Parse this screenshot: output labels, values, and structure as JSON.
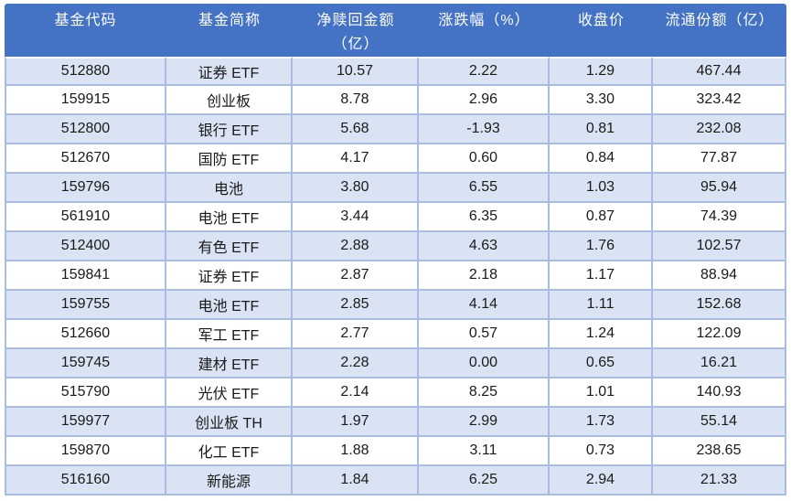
{
  "chart_data": {
    "type": "table",
    "columns": [
      "基金代码",
      "基金简称",
      "净赎回金额\n（亿）",
      "涨跌幅（%）",
      "收盘价",
      "流通份额（亿）"
    ],
    "rows": [
      [
        "512880",
        "证券 ETF",
        "10.57",
        "2.22",
        "1.29",
        "467.44"
      ],
      [
        "159915",
        "创业板",
        "8.78",
        "2.96",
        "3.30",
        "323.42"
      ],
      [
        "512800",
        "银行 ETF",
        "5.68",
        "-1.93",
        "0.81",
        "232.08"
      ],
      [
        "512670",
        "国防 ETF",
        "4.17",
        "0.60",
        "0.84",
        "77.87"
      ],
      [
        "159796",
        "电池",
        "3.80",
        "6.55",
        "1.03",
        "95.94"
      ],
      [
        "561910",
        "电池 ETF",
        "3.44",
        "6.35",
        "0.87",
        "74.39"
      ],
      [
        "512400",
        "有色 ETF",
        "2.88",
        "4.63",
        "1.76",
        "102.57"
      ],
      [
        "159841",
        "证券 ETF",
        "2.87",
        "2.18",
        "1.17",
        "88.94"
      ],
      [
        "159755",
        "电池 ETF",
        "2.85",
        "4.14",
        "1.11",
        "152.68"
      ],
      [
        "512660",
        "军工 ETF",
        "2.77",
        "0.57",
        "1.24",
        "122.09"
      ],
      [
        "159745",
        "建材 ETF",
        "2.28",
        "0.00",
        "0.65",
        "16.21"
      ],
      [
        "515790",
        "光伏 ETF",
        "2.14",
        "8.25",
        "1.01",
        "140.93"
      ],
      [
        "159977",
        "创业板 TH",
        "1.97",
        "2.99",
        "1.73",
        "55.14"
      ],
      [
        "159870",
        "化工 ETF",
        "1.88",
        "3.11",
        "0.73",
        "238.65"
      ],
      [
        "516160",
        "新能源",
        "1.84",
        "6.25",
        "2.94",
        "21.33"
      ]
    ],
    "layout_hints": {
      "header_position": "top",
      "row_banding": "odd-rows-shaded",
      "text_align": "center"
    }
  },
  "colors": {
    "header_bg": "#4472C4",
    "header_text": "#FFFFFF",
    "band_row_bg": "#DAE3F3",
    "plain_row_bg": "#FFFFFF",
    "border": "#A9BCE2",
    "body_text": "#1A1A1A"
  }
}
